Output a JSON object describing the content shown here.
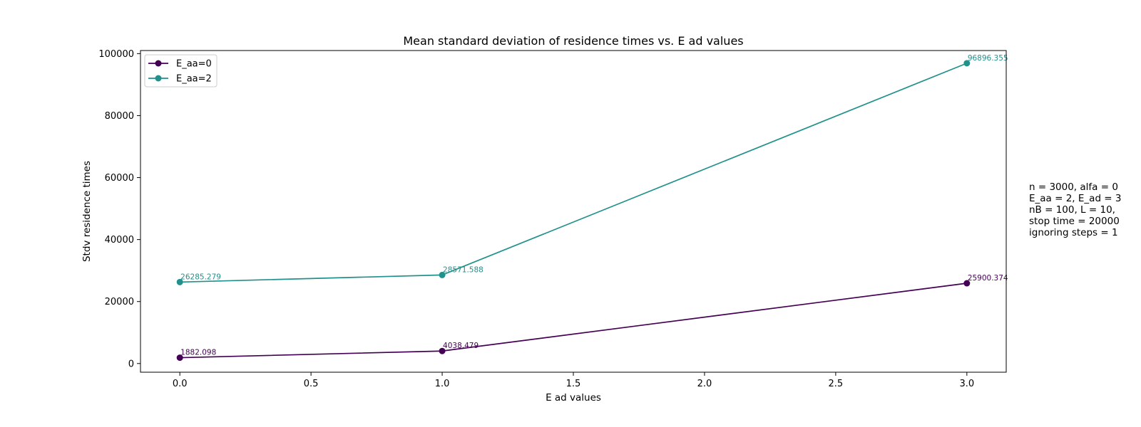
{
  "chart_data": {
    "type": "line",
    "title": "Mean standard deviation of residence times vs. E ad values",
    "xlabel": "E ad values",
    "ylabel": "Stdv residence times",
    "x": [
      0,
      1,
      3
    ],
    "xlim": [
      -0.15,
      3.15
    ],
    "ylim": [
      -2800,
      101000
    ],
    "xticks": [
      0.0,
      0.5,
      1.0,
      1.5,
      2.0,
      2.5,
      3.0
    ],
    "xtick_labels": [
      "0.0",
      "0.5",
      "1.0",
      "1.5",
      "2.0",
      "2.5",
      "3.0"
    ],
    "yticks": [
      0,
      20000,
      40000,
      60000,
      80000,
      100000
    ],
    "ytick_labels": [
      "0",
      "20000",
      "40000",
      "60000",
      "80000",
      "100000"
    ],
    "grid": false,
    "legend_position": "upper-left",
    "series": [
      {
        "name": "E_aa=0",
        "color": "#440154",
        "marker": "circle",
        "values": [
          1882.098,
          4038.479,
          25900.374
        ],
        "labels": [
          "1882.098",
          "4038.479",
          "25900.374"
        ]
      },
      {
        "name": "E_aa=2",
        "color": "#21918c",
        "marker": "circle",
        "values": [
          26285.279,
          28571.588,
          96896.355
        ],
        "labels": [
          "26285.279",
          "28571.588",
          "96896.355"
        ]
      }
    ],
    "annotation_lines": [
      "n = 3000, alfa = 0",
      "E_aa = 2, E_ad = 3",
      "nB = 100, L = 10,",
      "stop time = 20000",
      "ignoring steps = 1"
    ]
  }
}
